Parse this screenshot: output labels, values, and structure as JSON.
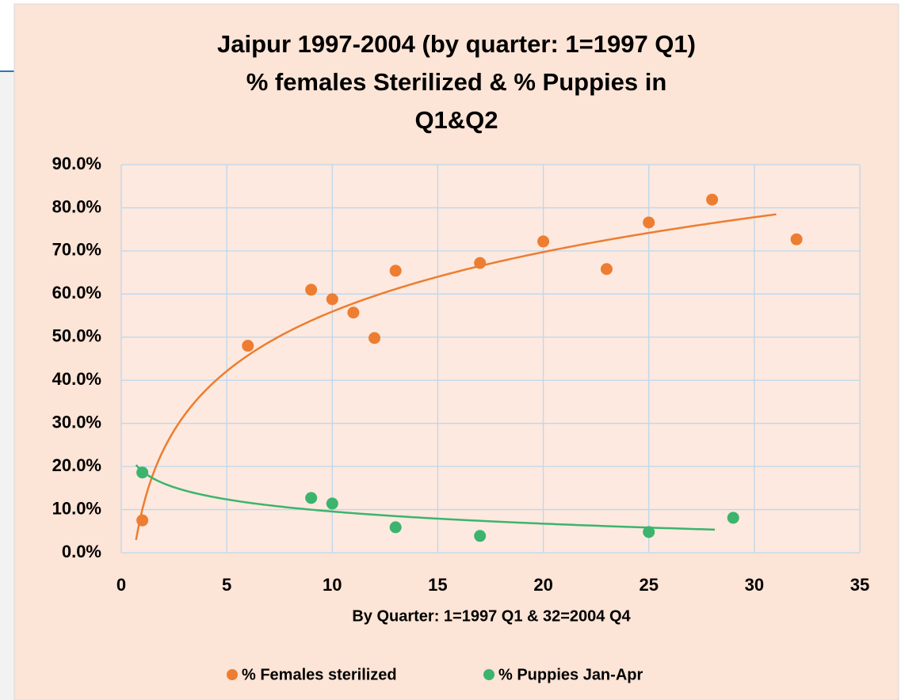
{
  "chart_data": {
    "type": "scatter",
    "title": [
      "Jaipur 1997-2004 (by quarter: 1=1997 Q1)",
      "% females Sterilized & % Puppies in",
      "Q1&Q2"
    ],
    "x_label": "By Quarter: 1=1997 Q1 & 32=2004 Q4",
    "xlim": [
      0,
      35
    ],
    "xticks": [
      0,
      5,
      10,
      15,
      20,
      25,
      30,
      35
    ],
    "ylim": [
      0,
      90
    ],
    "yticks": [
      {
        "value": 0,
        "label": "0.0%"
      },
      {
        "value": 10,
        "label": "10.0%"
      },
      {
        "value": 20,
        "label": "20.0%"
      },
      {
        "value": 30,
        "label": "30.0%"
      },
      {
        "value": 40,
        "label": "40.0%"
      },
      {
        "value": 50,
        "label": "50.0%"
      },
      {
        "value": 60,
        "label": "60.0%"
      },
      {
        "value": 70,
        "label": "70.0%"
      },
      {
        "value": 80,
        "label": "80.0%"
      },
      {
        "value": 90,
        "label": "90.0%"
      }
    ],
    "grid": true,
    "legend": "bottom",
    "trendline": "logarithmic",
    "series": [
      {
        "name": "% Females sterilized",
        "color": "#ed7d31",
        "x": [
          1,
          6,
          9,
          10,
          11,
          12,
          13,
          17,
          20,
          23,
          25,
          28,
          32
        ],
        "values": [
          7.5,
          48.0,
          61.0,
          58.8,
          55.7,
          49.8,
          65.4,
          67.2,
          72.2,
          65.8,
          76.6,
          81.9,
          72.7
        ]
      },
      {
        "name": "% Puppies Jan-Apr",
        "color": "#3cb46e",
        "x": [
          1,
          9,
          10,
          13,
          17,
          25,
          29
        ],
        "values": [
          18.6,
          12.7,
          11.4,
          5.9,
          3.9,
          4.8,
          8.1
        ]
      }
    ]
  }
}
